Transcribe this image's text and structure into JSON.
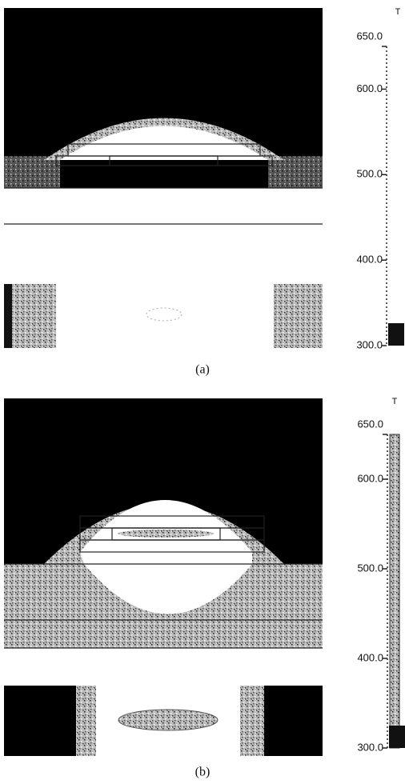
{
  "panels": [
    {
      "caption": "(a)",
      "colorbar": {
        "title": "T",
        "lim": [
          300,
          650
        ],
        "ticks": [
          {
            "value": 300,
            "label": "300.0"
          },
          {
            "value": 400,
            "label": "400.0"
          },
          {
            "value": 500,
            "label": "500.0"
          },
          {
            "value": 600,
            "label": "600.0"
          },
          {
            "value": 650,
            "label": "650.0"
          }
        ]
      }
    },
    {
      "caption": "(b)",
      "colorbar": {
        "title": "T",
        "lim": [
          300,
          650
        ],
        "ticks": [
          {
            "value": 300,
            "label": "300.0"
          },
          {
            "value": 400,
            "label": "400.0"
          },
          {
            "value": 500,
            "label": "500.0"
          },
          {
            "value": 600,
            "label": "600.0"
          },
          {
            "value": 650,
            "label": "650.0"
          }
        ]
      }
    }
  ]
}
